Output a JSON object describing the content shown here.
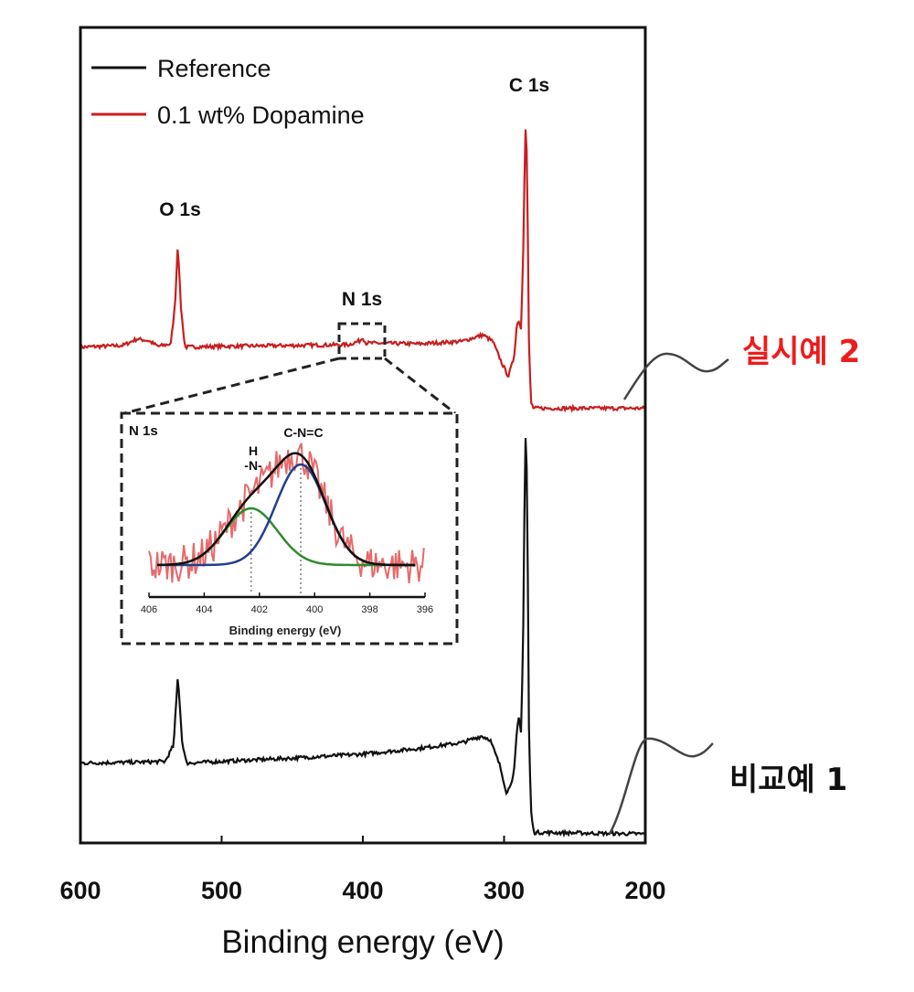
{
  "chart_data": {
    "type": "line",
    "xlabel": "Binding energy (eV)",
    "ylabel": "",
    "xlim": [
      600,
      200
    ],
    "ylim": [
      0,
      100
    ],
    "x_ticks": [
      600,
      500,
      400,
      300,
      200
    ],
    "grid": false,
    "legend": {
      "placement": "top-left",
      "entries": [
        "Reference",
        "0.1 wt% Dopamine"
      ]
    },
    "colors": {
      "reference": "#111111",
      "dopamine": "#c81e1e",
      "annotation_red": "#ee1c1c"
    },
    "series": [
      {
        "name": "0.1 wt% Dopamine",
        "label": "실시예 2",
        "points": [
          [
            600,
            60.8
          ],
          [
            570,
            61.0
          ],
          [
            560,
            61.8
          ],
          [
            552,
            61.6
          ],
          [
            545,
            60.9
          ],
          [
            536,
            61.2
          ],
          [
            533,
            66
          ],
          [
            531,
            73.7
          ],
          [
            529,
            66
          ],
          [
            526,
            60.8
          ],
          [
            500,
            60.9
          ],
          [
            450,
            61.0
          ],
          [
            410,
            61.1
          ],
          [
            402,
            61.6
          ],
          [
            400,
            62.0
          ],
          [
            398,
            61.3
          ],
          [
            360,
            61.2
          ],
          [
            330,
            61.5
          ],
          [
            315,
            62.3
          ],
          [
            308,
            61.5
          ],
          [
            302,
            59.0
          ],
          [
            297,
            57.2
          ],
          [
            293,
            59.5
          ],
          [
            291,
            63.5
          ],
          [
            289.5,
            64.1
          ],
          [
            288,
            63
          ],
          [
            286.5,
            72
          ],
          [
            285.2,
            85
          ],
          [
            284.5,
            89.7
          ],
          [
            283.5,
            80
          ],
          [
            282.5,
            62
          ],
          [
            281,
            54
          ],
          [
            279,
            53.3
          ],
          [
            200,
            53.3
          ]
        ]
      },
      {
        "name": "Reference",
        "label": "비교예 1",
        "points": [
          [
            600,
            9.8
          ],
          [
            560,
            9.9
          ],
          [
            540,
            10.0
          ],
          [
            534,
            12
          ],
          [
            531,
            20.6
          ],
          [
            528,
            12.5
          ],
          [
            525,
            9.8
          ],
          [
            500,
            10.0
          ],
          [
            450,
            10.4
          ],
          [
            400,
            10.9
          ],
          [
            360,
            11.6
          ],
          [
            330,
            12.3
          ],
          [
            316,
            13.1
          ],
          [
            310,
            12.7
          ],
          [
            303,
            9.5
          ],
          [
            298,
            6.0
          ],
          [
            293,
            8.5
          ],
          [
            291,
            13.5
          ],
          [
            289.5,
            15.4
          ],
          [
            288,
            13.5
          ],
          [
            286.5,
            25
          ],
          [
            285.3,
            45
          ],
          [
            284.5,
            52.4
          ],
          [
            283.5,
            40
          ],
          [
            282.5,
            15
          ],
          [
            281,
            4
          ],
          [
            279,
            1.3
          ],
          [
            200,
            1.1
          ]
        ]
      }
    ],
    "peak_labels": [
      {
        "text": "O 1s",
        "x": 531
      },
      {
        "text": "N 1s",
        "x": 400
      },
      {
        "text": "C 1s",
        "x": 284.5
      }
    ],
    "inset": {
      "title": "N 1s",
      "xlabel": "Binding energy (eV)",
      "xlim": [
        406,
        396
      ],
      "x_ticks": [
        406,
        404,
        402,
        400,
        398,
        396
      ],
      "components": [
        {
          "name": "H -N-",
          "label_line1": "H",
          "label_line2": "-N-",
          "center": 402.3,
          "height": 62,
          "sigma": 0.95,
          "color": "#2e8b2e"
        },
        {
          "name": "C-N=C",
          "label_line1": "C-N=C",
          "center": 400.5,
          "height": 110,
          "sigma": 0.9,
          "color": "#1f3f8f"
        }
      ],
      "envelope_color": "#111111",
      "raw_color": "#e05050"
    }
  }
}
